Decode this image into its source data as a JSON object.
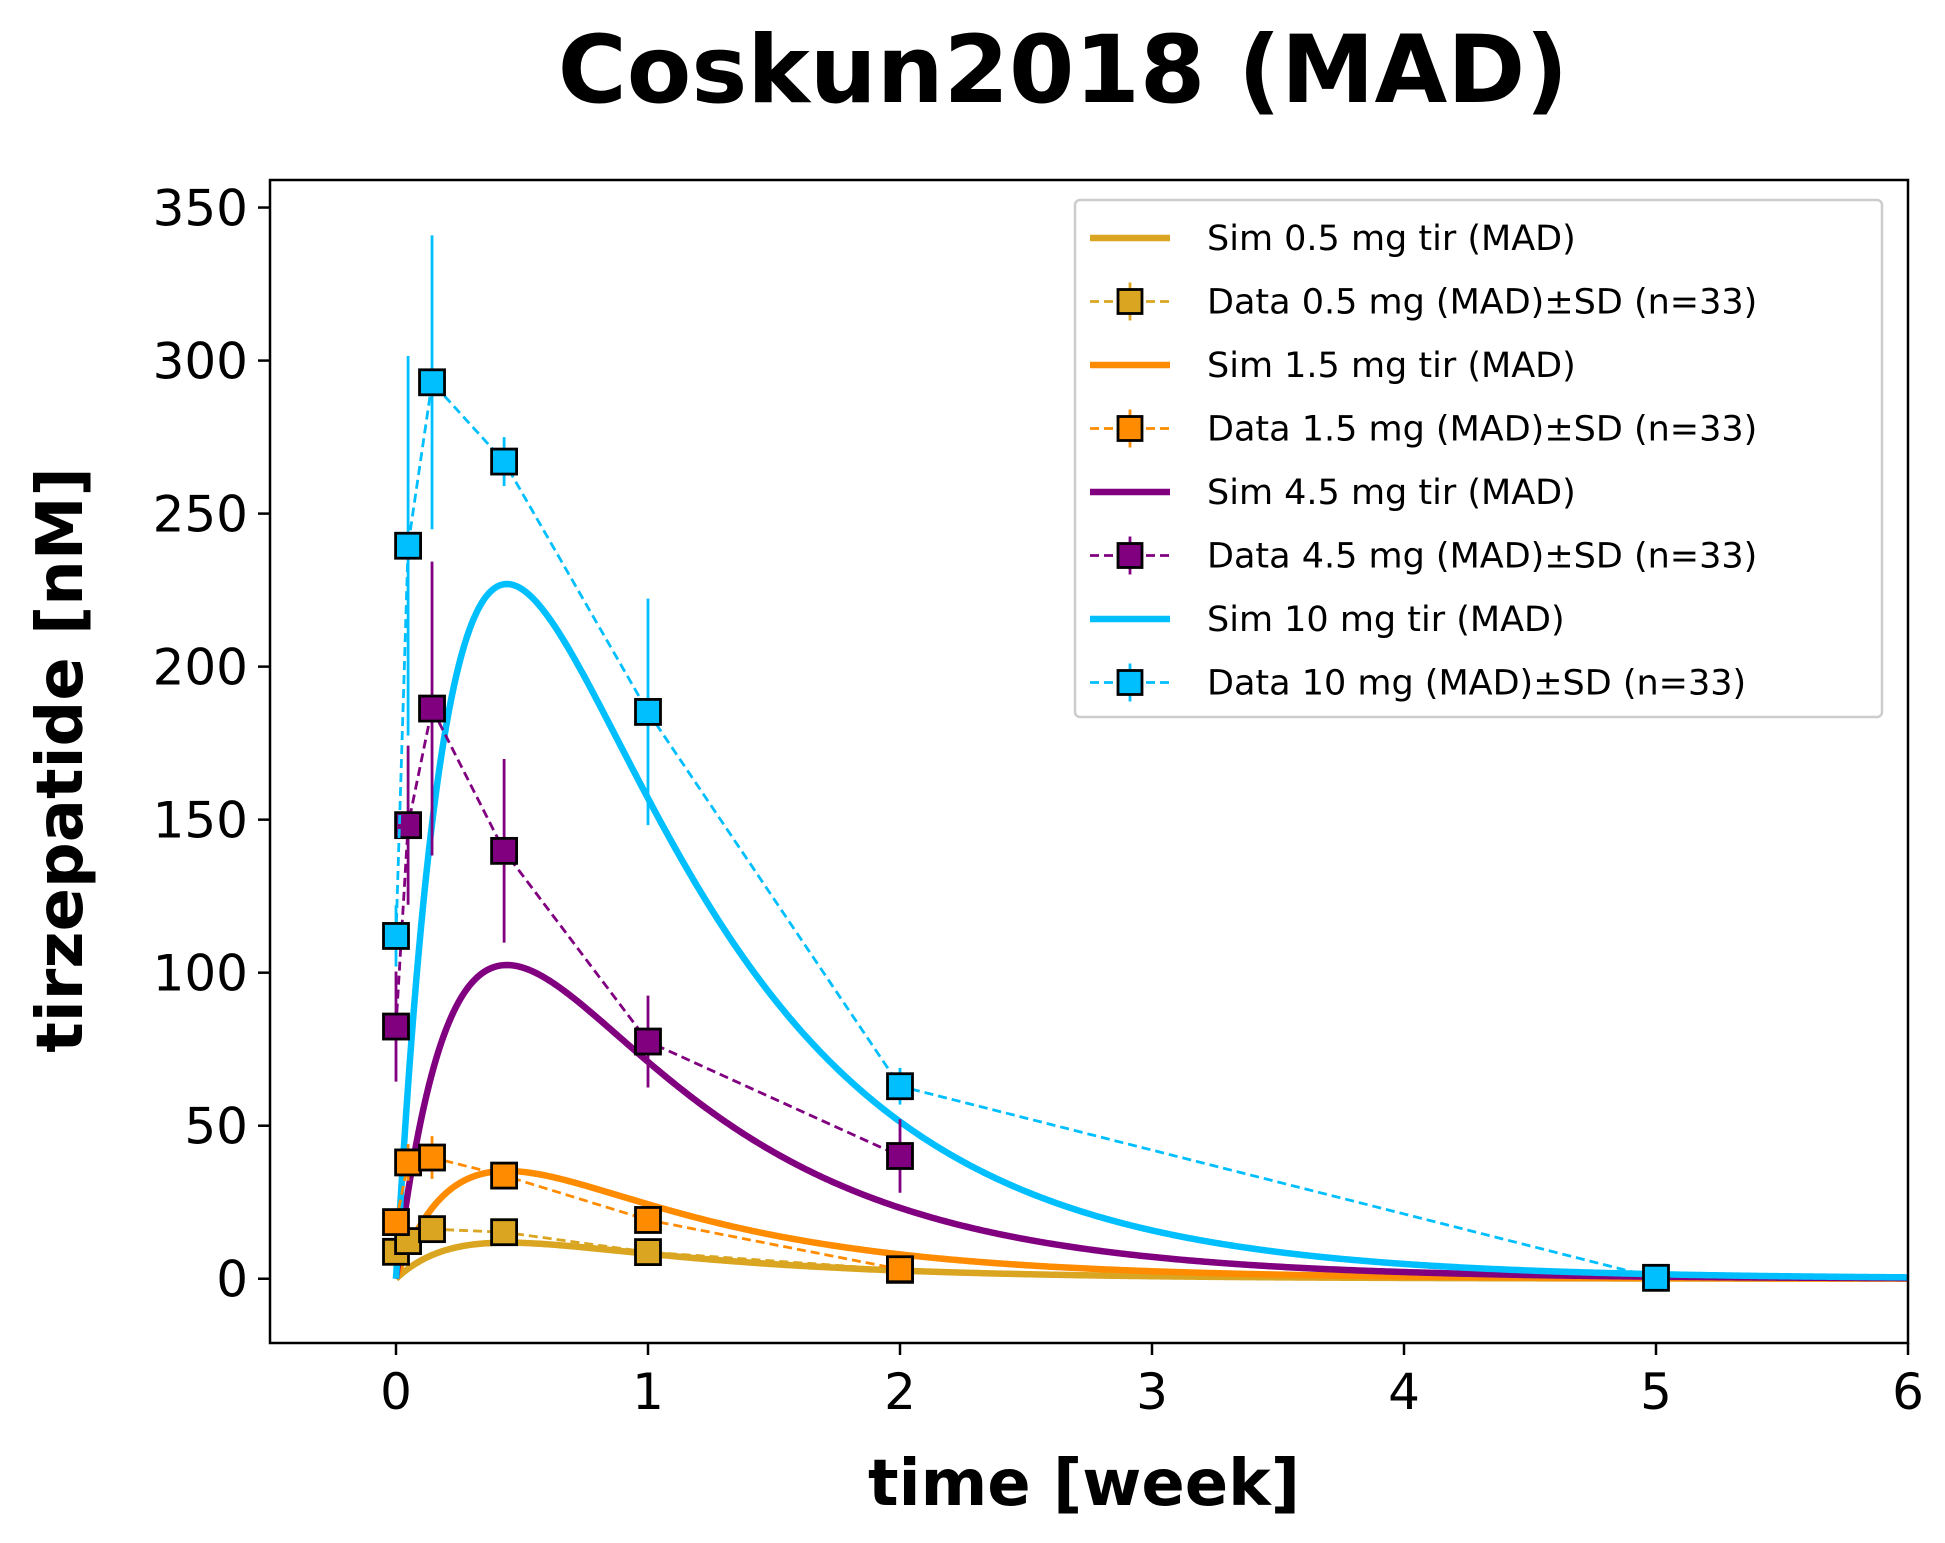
{
  "chart_data": {
    "type": "line",
    "title": "Coskun2018 (MAD)",
    "xlabel": "time [week]",
    "ylabel": "tirzepatide [nM]",
    "xlim": [
      -0.5,
      6
    ],
    "ylim": [
      -21,
      359
    ],
    "xticks": [
      0,
      1,
      2,
      3,
      4,
      5,
      6
    ],
    "yticks": [
      0,
      50,
      100,
      150,
      200,
      250,
      300,
      350
    ],
    "grid": false,
    "legend_position": "top-right",
    "series": [
      {
        "name": "Sim 0.5 mg tir (MAD)",
        "kind": "sim",
        "color": "#DAA520",
        "peak": 11.8,
        "tmax": 0.44
      },
      {
        "name": "Data 0.5 mg (MAD)±SD (n=33)",
        "kind": "data",
        "color": "#DAA520",
        "x": [
          0,
          0.048,
          0.143,
          0.429,
          1,
          2
        ],
        "y": [
          8.8,
          12.3,
          16.2,
          15.2,
          8.7,
          2.9
        ],
        "yerr": [
          2,
          3,
          2,
          2,
          2,
          1
        ]
      },
      {
        "name": "Sim 1.5 mg tir (MAD)",
        "kind": "sim",
        "color": "#FF8C00",
        "peak": 35.2,
        "tmax": 0.44
      },
      {
        "name": "Data 1.5 mg (MAD)±SD (n=33)",
        "kind": "data",
        "color": "#FF8C00",
        "x": [
          0,
          0.048,
          0.143,
          0.429,
          1,
          2
        ],
        "y": [
          18.5,
          38.0,
          39.6,
          33.7,
          19.2,
          3.1
        ],
        "yerr": [
          4,
          6,
          7,
          4,
          3,
          1
        ]
      },
      {
        "name": "Sim 4.5 mg tir (MAD)",
        "kind": "sim",
        "color": "#800080",
        "peak": 102.5,
        "tmax": 0.44
      },
      {
        "name": "Data 4.5 mg (MAD)±SD (n=33)",
        "kind": "data",
        "color": "#800080",
        "x": [
          0,
          0.048,
          0.143,
          0.429,
          1,
          2
        ],
        "y": [
          82.4,
          148.2,
          186.3,
          139.8,
          77.5,
          40.1
        ],
        "yerr": [
          18,
          26,
          48,
          30,
          15,
          12
        ]
      },
      {
        "name": "Sim 10 mg tir (MAD)",
        "kind": "sim",
        "color": "#00BFFF",
        "peak": 227.0,
        "tmax": 0.44
      },
      {
        "name": "Data 10 mg (MAD)±SD (n=33)",
        "kind": "data",
        "color": "#00BFFF",
        "x": [
          0,
          0.048,
          0.143,
          0.429,
          1,
          2,
          5
        ],
        "y": [
          112.0,
          239.5,
          292.9,
          267.0,
          185.2,
          62.9,
          0.3
        ],
        "yerr": [
          10,
          62,
          48,
          8,
          37,
          6,
          0
        ]
      }
    ]
  }
}
